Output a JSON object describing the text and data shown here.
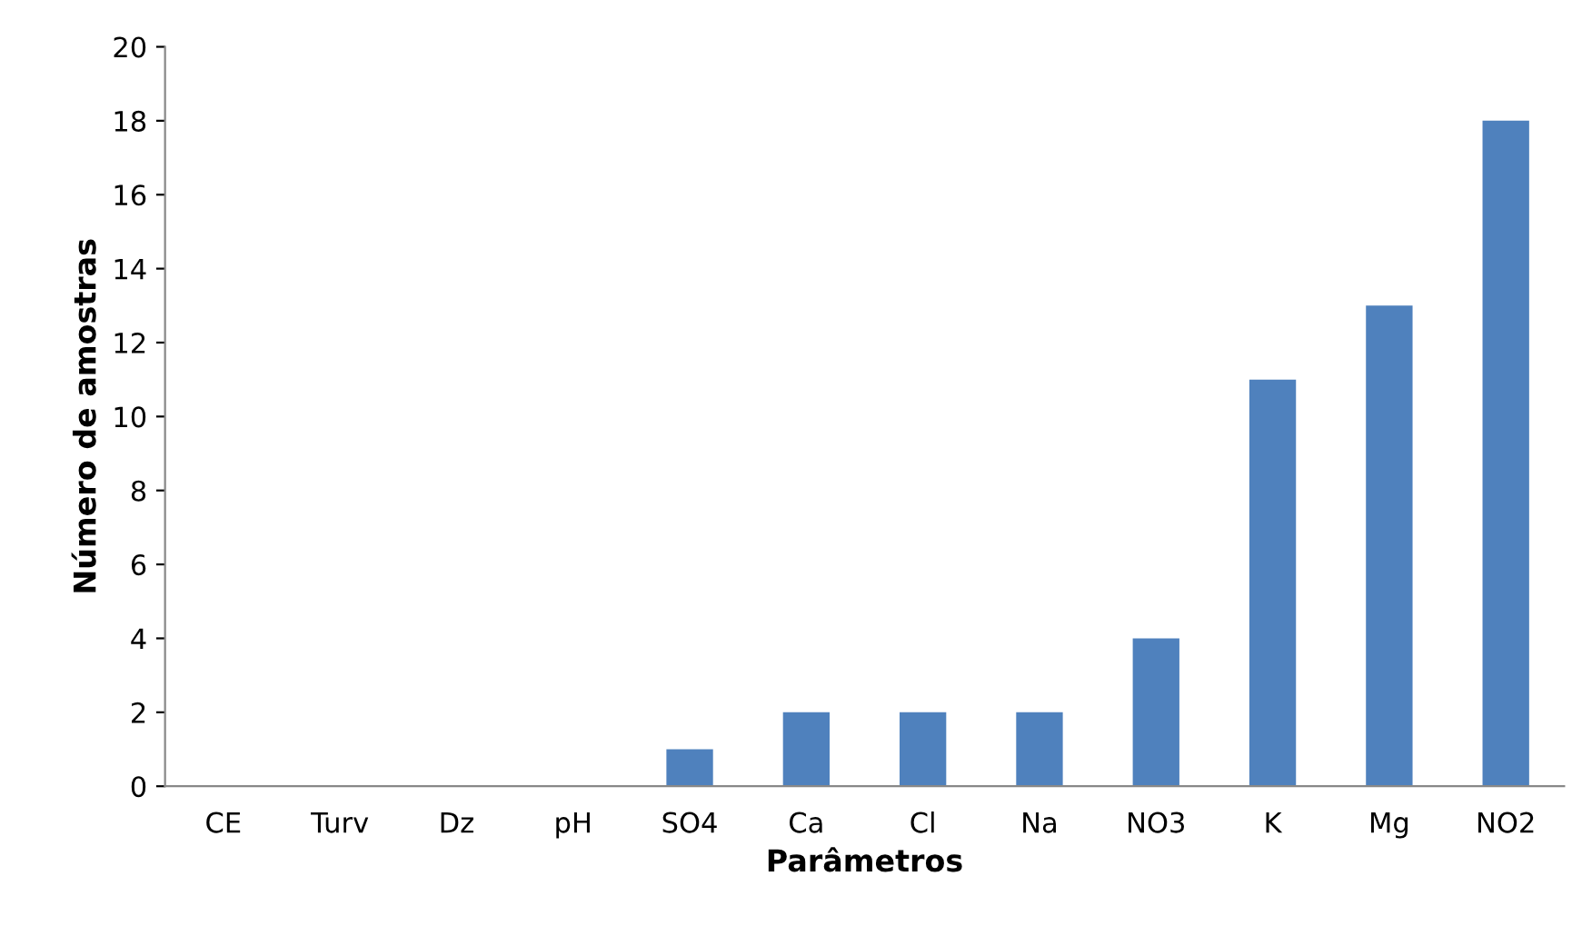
{
  "chart_data": {
    "type": "bar",
    "xlabel": "Parâmetros",
    "ylabel": "Número de amostras",
    "categories": [
      "CE",
      "Turv",
      "Dz",
      "pH",
      "SO4",
      "Ca",
      "Cl",
      "Na",
      "NO3",
      "K",
      "Mg",
      "NO2"
    ],
    "values": [
      0,
      0,
      0,
      0,
      1,
      2,
      2,
      2,
      4,
      11,
      13,
      18
    ],
    "color": "#4f81bd",
    "ylim": [
      0,
      20
    ],
    "yticks": [
      0,
      2,
      4,
      6,
      8,
      10,
      12,
      14,
      16,
      18,
      20
    ],
    "grid": false,
    "legend": false
  }
}
